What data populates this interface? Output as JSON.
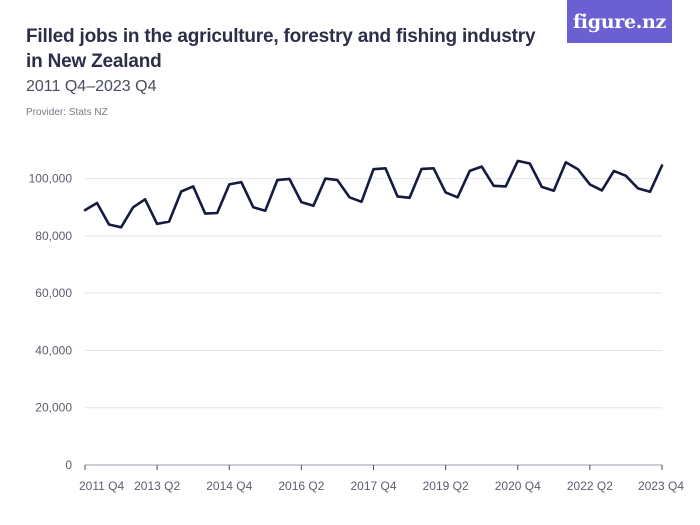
{
  "header": {
    "title": "Filled jobs in the agriculture, forestry and fishing industry in New Zealand",
    "subtitle": "2011 Q4–2023 Q4",
    "provider": "Provider: Stats NZ"
  },
  "logo": {
    "text": "figure.nz",
    "color": "#6b5fd1"
  },
  "colors": {
    "line": "#151a3f",
    "grid": "#e3e4ea"
  },
  "chart_data": {
    "type": "line",
    "title": "Filled jobs in the agriculture, forestry and fishing industry in New Zealand",
    "subtitle": "2011 Q4–2023 Q4",
    "xlabel": "",
    "ylabel": "",
    "ylim": [
      0,
      110000
    ],
    "yticks": [
      0,
      20000,
      40000,
      60000,
      80000,
      100000
    ],
    "ytick_labels": [
      "0",
      "20,000",
      "40,000",
      "60,000",
      "80,000",
      "100,000"
    ],
    "xtick_labels": [
      "2011 Q4",
      "2013 Q2",
      "2014 Q4",
      "2016 Q2",
      "2017 Q4",
      "2019 Q2",
      "2020 Q4",
      "2022 Q2",
      "2023 Q4"
    ],
    "grid": true,
    "x": [
      "2011 Q4",
      "2012 Q1",
      "2012 Q2",
      "2012 Q3",
      "2012 Q4",
      "2013 Q1",
      "2013 Q2",
      "2013 Q3",
      "2013 Q4",
      "2014 Q1",
      "2014 Q2",
      "2014 Q3",
      "2014 Q4",
      "2015 Q1",
      "2015 Q2",
      "2015 Q3",
      "2015 Q4",
      "2016 Q1",
      "2016 Q2",
      "2016 Q3",
      "2016 Q4",
      "2017 Q1",
      "2017 Q2",
      "2017 Q3",
      "2017 Q4",
      "2018 Q1",
      "2018 Q2",
      "2018 Q3",
      "2018 Q4",
      "2019 Q1",
      "2019 Q2",
      "2019 Q3",
      "2019 Q4",
      "2020 Q1",
      "2020 Q2",
      "2020 Q3",
      "2020 Q4",
      "2021 Q1",
      "2021 Q2",
      "2021 Q3",
      "2021 Q4",
      "2022 Q1",
      "2022 Q2",
      "2022 Q3",
      "2022 Q4",
      "2023 Q1",
      "2023 Q2",
      "2023 Q3",
      "2023 Q4"
    ],
    "series": [
      {
        "values": [
          89000,
          91500,
          84000,
          83000,
          90000,
          92800,
          84200,
          85000,
          95500,
          97300,
          87800,
          88000,
          98000,
          98800,
          90000,
          88800,
          99500,
          99900,
          91800,
          90500,
          100000,
          99500,
          93500,
          91900,
          103300,
          103600,
          93800,
          93300,
          103400,
          103600,
          95200,
          93500,
          102700,
          104200,
          97500,
          97300,
          106200,
          105300,
          97100,
          95800,
          105700,
          103300,
          98000,
          95900,
          102700,
          101000,
          96600,
          95400,
          104600
        ]
      }
    ]
  }
}
